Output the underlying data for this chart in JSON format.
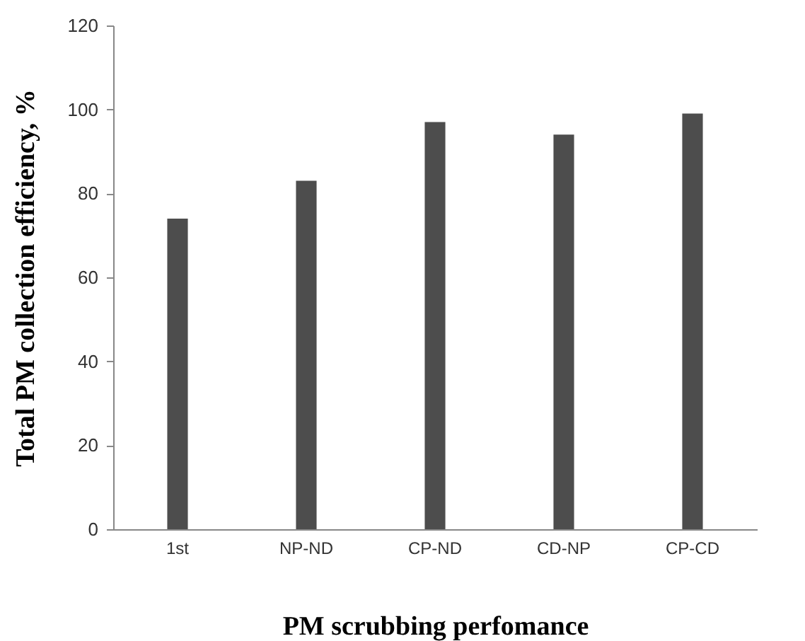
{
  "chart_data": {
    "type": "bar",
    "xlabel": "PM scrubbing perfomance",
    "ylabel": "Total PM collection efficiency, %",
    "categories": [
      "1st",
      "NP-ND",
      "CP-ND",
      "CD-NP",
      "CP-CD"
    ],
    "values": [
      74,
      83,
      97,
      94,
      99
    ],
    "color": "#4d4d4d",
    "ylim": [
      0,
      120
    ],
    "yticks": [
      0,
      20,
      40,
      60,
      80,
      100,
      120
    ],
    "grid": false,
    "legend": false
  }
}
